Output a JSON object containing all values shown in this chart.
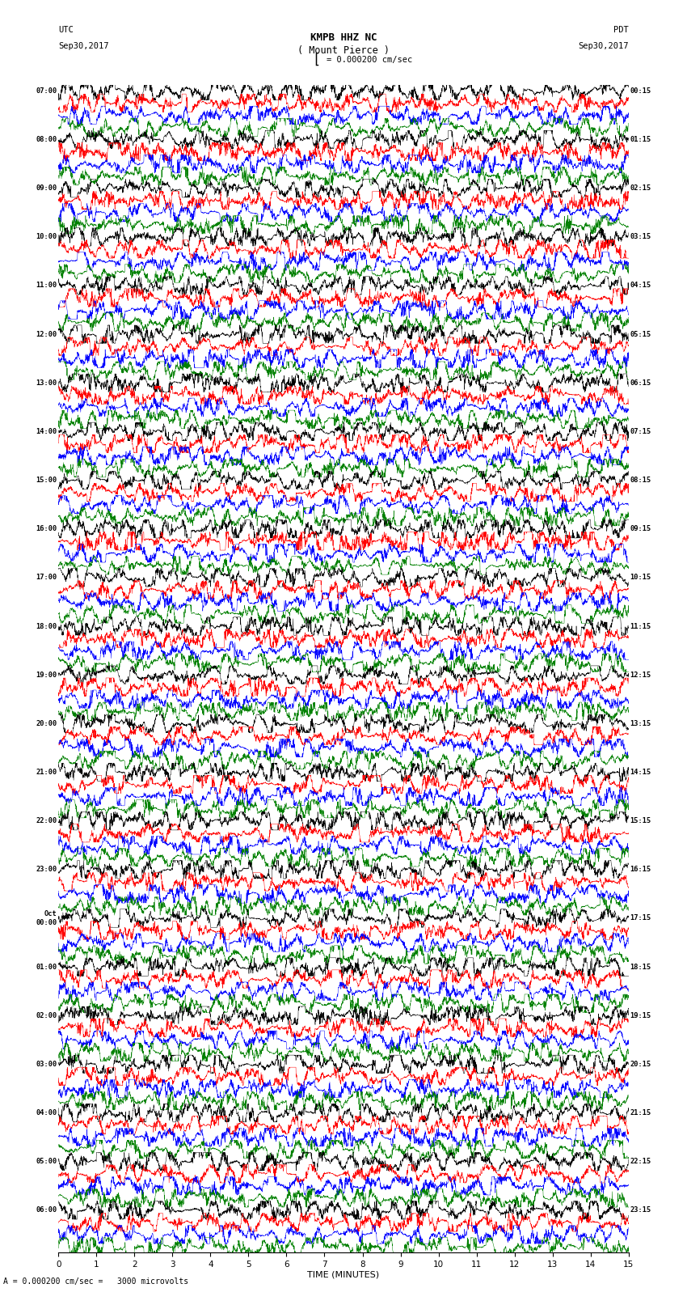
{
  "title_line1": "KMPB HHZ NC",
  "title_line2": "( Mount Pierce )",
  "scale_label": "= 0.000200 cm/sec",
  "bottom_label": "A = 0.000200 cm/sec =   3000 microvolts",
  "xlabel": "TIME (MINUTES)",
  "left_times_utc": [
    "07:00",
    "08:00",
    "09:00",
    "10:00",
    "11:00",
    "12:00",
    "13:00",
    "14:00",
    "15:00",
    "16:00",
    "17:00",
    "18:00",
    "19:00",
    "20:00",
    "21:00",
    "22:00",
    "23:00",
    "Oct\n00:00",
    "01:00",
    "02:00",
    "03:00",
    "04:00",
    "05:00",
    "06:00"
  ],
  "right_times_pdt": [
    "00:15",
    "01:15",
    "02:15",
    "03:15",
    "04:15",
    "05:15",
    "06:15",
    "07:15",
    "08:15",
    "09:15",
    "10:15",
    "11:15",
    "12:15",
    "13:15",
    "14:15",
    "15:15",
    "16:15",
    "17:15",
    "18:15",
    "19:15",
    "20:15",
    "21:15",
    "22:15",
    "23:15"
  ],
  "num_rows": 24,
  "traces_per_row": 4,
  "figwidth": 8.5,
  "figheight": 16.13,
  "bg_color": "white",
  "trace_color_order": [
    "black",
    "red",
    "blue",
    "green"
  ],
  "noise_seed": 12345
}
